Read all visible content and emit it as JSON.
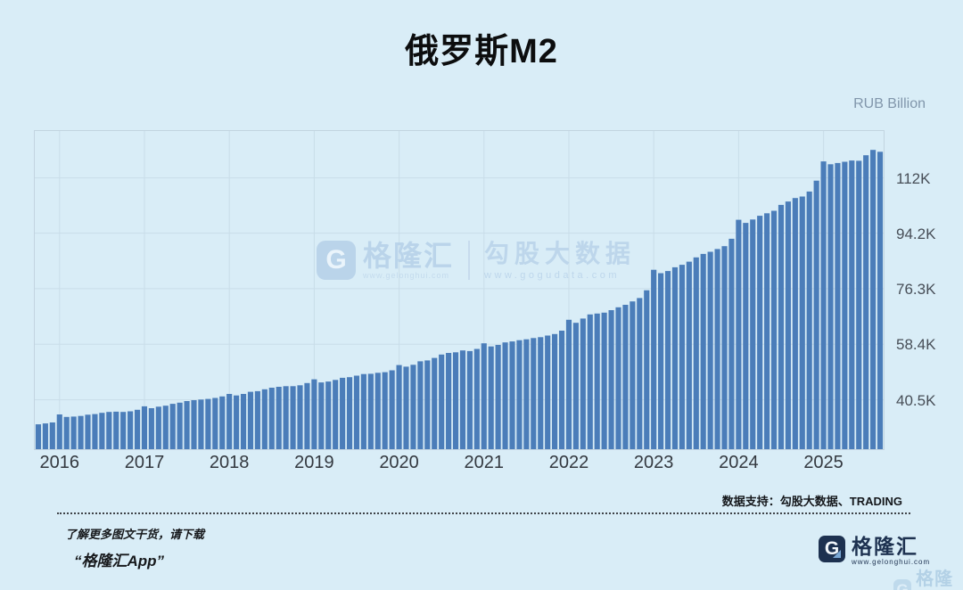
{
  "title": "俄罗斯M2",
  "axis_unit_label": "RUB Billion",
  "watermark": {
    "logo_letter": "G",
    "brand": "格隆汇",
    "brand_url": "www.gelonghui.com",
    "product": "勾股大数据",
    "product_url": "www.gogudata.com"
  },
  "footer": {
    "source_note": "数据支持：勾股大数据、TRADING",
    "promo_line1": "了解更多图文干货，请下载",
    "promo_line2": "“格隆汇App”",
    "logo_letter": "G",
    "brand": "格隆汇",
    "brand_url": "www.gelonghui.com"
  },
  "colors": {
    "background": "#d9edf7",
    "bar": "#4b7db9",
    "grid": "#c9dde9",
    "plot_border": "#c2d4e0",
    "axis_text": "#474e57",
    "title_text": "#0c0d0e",
    "watermark_blue": "#b5d0e8",
    "logo_navy": "#1d3150"
  },
  "chart_data": {
    "type": "bar",
    "title": "俄罗斯M2",
    "xlabel": "",
    "ylabel": "RUB Billion",
    "legend": null,
    "grid": true,
    "y_axis_side": "right",
    "ylim": [
      24600,
      127100
    ],
    "y_tick_labels": [
      "112K",
      "94.2K",
      "76.3K",
      "58.4K",
      "40.5K"
    ],
    "y_ticks_values": [
      112000,
      94200,
      76300,
      58400,
      40500
    ],
    "x_tick_labels": [
      "2016",
      "2017",
      "2018",
      "2019",
      "2020",
      "2021",
      "2022",
      "2023",
      "2024",
      "2025"
    ],
    "frequency": "monthly",
    "months": [
      "2015-10",
      "2015-11",
      "2015-12",
      "2016-01",
      "2016-02",
      "2016-03",
      "2016-04",
      "2016-05",
      "2016-06",
      "2016-07",
      "2016-08",
      "2016-09",
      "2016-10",
      "2016-11",
      "2016-12",
      "2017-01",
      "2017-02",
      "2017-03",
      "2017-04",
      "2017-05",
      "2017-06",
      "2017-07",
      "2017-08",
      "2017-09",
      "2017-10",
      "2017-11",
      "2017-12",
      "2018-01",
      "2018-02",
      "2018-03",
      "2018-04",
      "2018-05",
      "2018-06",
      "2018-07",
      "2018-08",
      "2018-09",
      "2018-10",
      "2018-11",
      "2018-12",
      "2019-01",
      "2019-02",
      "2019-03",
      "2019-04",
      "2019-05",
      "2019-06",
      "2019-07",
      "2019-08",
      "2019-09",
      "2019-10",
      "2019-11",
      "2019-12",
      "2020-01",
      "2020-02",
      "2020-03",
      "2020-04",
      "2020-05",
      "2020-06",
      "2020-07",
      "2020-08",
      "2020-09",
      "2020-10",
      "2020-11",
      "2020-12",
      "2021-01",
      "2021-02",
      "2021-03",
      "2021-04",
      "2021-05",
      "2021-06",
      "2021-07",
      "2021-08",
      "2021-09",
      "2021-10",
      "2021-11",
      "2021-12",
      "2022-01",
      "2022-02",
      "2022-03",
      "2022-04",
      "2022-05",
      "2022-06",
      "2022-07",
      "2022-08",
      "2022-09",
      "2022-10",
      "2022-11",
      "2022-12",
      "2023-01",
      "2023-02",
      "2023-03",
      "2023-04",
      "2023-05",
      "2023-06",
      "2023-07",
      "2023-08",
      "2023-09",
      "2023-10",
      "2023-11",
      "2023-12",
      "2024-01",
      "2024-02",
      "2024-03",
      "2024-04",
      "2024-05",
      "2024-06",
      "2024-07",
      "2024-08",
      "2024-09",
      "2024-10",
      "2024-11",
      "2024-12",
      "2025-01",
      "2025-02",
      "2025-03",
      "2025-04",
      "2025-05",
      "2025-06",
      "2025-07",
      "2025-08",
      "2025-09"
    ],
    "values_rub_billion": [
      32600,
      32900,
      33200,
      35800,
      35000,
      35100,
      35300,
      35700,
      35900,
      36300,
      36600,
      36700,
      36600,
      36800,
      37300,
      38400,
      37800,
      38300,
      38600,
      39200,
      39600,
      40100,
      40400,
      40600,
      40800,
      41100,
      41600,
      42400,
      41900,
      42400,
      43100,
      43300,
      43900,
      44400,
      44700,
      44900,
      44900,
      45200,
      45900,
      47100,
      46100,
      46400,
      46900,
      47600,
      47800,
      48300,
      48800,
      48900,
      49200,
      49400,
      50000,
      51700,
      51200,
      51800,
      52900,
      53200,
      54000,
      55100,
      55600,
      55800,
      56400,
      56200,
      56900,
      58700,
      57700,
      58200,
      59000,
      59300,
      59700,
      60000,
      60400,
      60700,
      61200,
      61700,
      62800,
      66300,
      65300,
      66700,
      68000,
      68300,
      68600,
      69400,
      70300,
      71100,
      72200,
      73300,
      75800,
      82400,
      81300,
      82000,
      83200,
      84000,
      85000,
      86400,
      87500,
      88200,
      89100,
      90000,
      92400,
      98500,
      97500,
      98600,
      99800,
      100600,
      101400,
      103300,
      104400,
      105500,
      106000,
      107600,
      111100,
      117300,
      116400,
      116800,
      117200,
      117600,
      117500,
      119300,
      121000,
      120400
    ]
  }
}
